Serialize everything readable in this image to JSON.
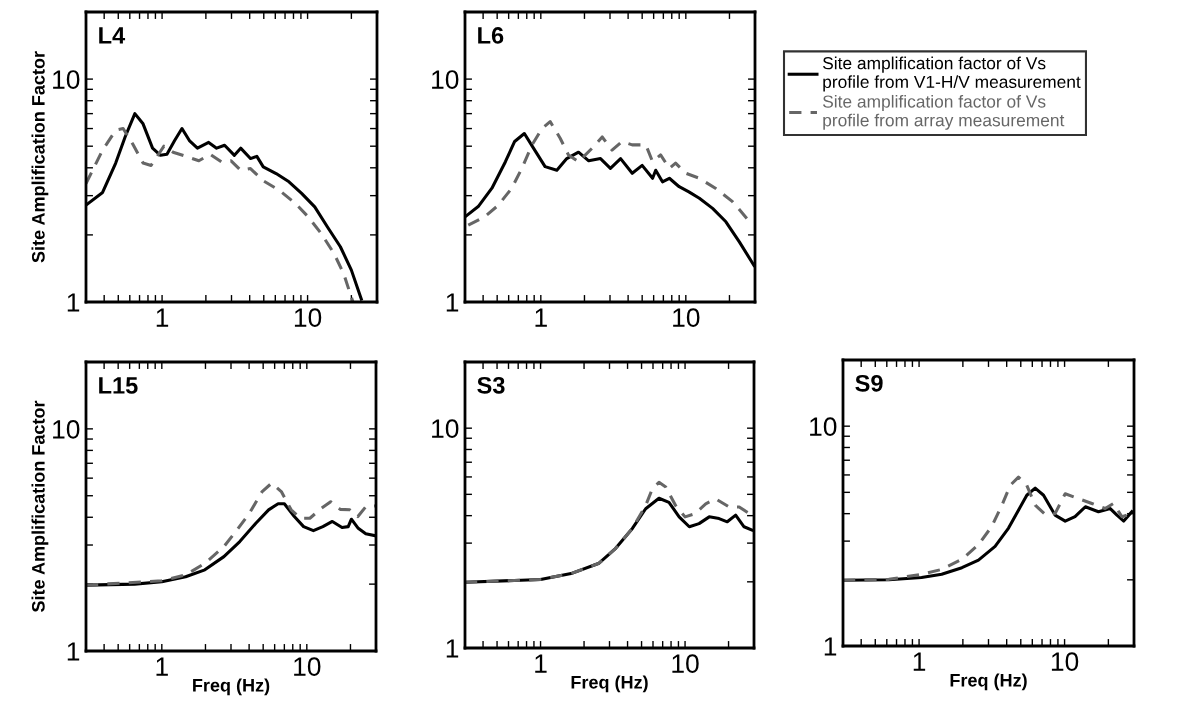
{
  "chart_data": [
    {
      "type": "line",
      "title": "L4",
      "ylabel": "Site Amplification Factor",
      "log": "xy",
      "grid": false,
      "legend": false,
      "xlim": [
        0.3,
        30
      ],
      "ylim": [
        1,
        20
      ],
      "xticks": [
        {
          "value": 0.4,
          "label": null
        },
        {
          "value": 0.5,
          "label": null
        },
        {
          "value": 0.6,
          "label": null
        },
        {
          "value": 0.7,
          "label": null
        },
        {
          "value": 0.8,
          "label": null
        },
        {
          "value": 0.9,
          "label": null
        },
        1,
        {
          "value": 2,
          "label": null
        },
        {
          "value": 3,
          "label": null
        },
        {
          "value": 4,
          "label": null
        },
        {
          "value": 5,
          "label": null
        },
        {
          "value": 6,
          "label": null
        },
        {
          "value": 7,
          "label": null
        },
        {
          "value": 8,
          "label": null
        },
        {
          "value": 9,
          "label": null
        },
        10,
        {
          "value": 20,
          "label": null
        }
      ],
      "yticks": [
        1,
        {
          "value": 2,
          "label": null
        },
        {
          "value": 3,
          "label": null
        },
        {
          "value": 4,
          "label": null
        },
        {
          "value": 5,
          "label": null
        },
        {
          "value": 6,
          "label": null
        },
        {
          "value": 7,
          "label": null
        },
        {
          "value": 8,
          "label": null
        },
        {
          "value": 9,
          "label": null
        },
        10
      ],
      "series": [
        {
          "color": "#000000",
          "line_style": "solid",
          "x": [
            0.3,
            0.39,
            0.48,
            0.557,
            0.65,
            0.74,
            0.86,
            0.975,
            1.08,
            1.22,
            1.37,
            1.54,
            1.75,
            2.09,
            2.37,
            2.69,
            3.14,
            3.47,
            4.05,
            4.48,
            4.96,
            6.08,
            7.45,
            9.1,
            11.2,
            13.7,
            16.8,
            20,
            23.4
          ],
          "values": [
            2.72,
            3.1,
            4.2,
            5.5,
            7.0,
            6.3,
            4.9,
            4.55,
            4.6,
            5.3,
            6.0,
            5.3,
            4.9,
            5.2,
            4.9,
            5.05,
            4.55,
            4.9,
            4.4,
            4.5,
            4.04,
            3.77,
            3.46,
            3.07,
            2.67,
            2.17,
            1.77,
            1.39,
            1.03
          ]
        },
        {
          "color": "#666666",
          "line_style": "dashed",
          "x": [
            0.3,
            0.39,
            0.48,
            0.54,
            0.63,
            0.74,
            0.84,
            1.03,
            1.19,
            1.46,
            1.79,
            2.14,
            2.56,
            2.98,
            3.47,
            4.05,
            4.96,
            6.4,
            8.24,
            10.1,
            12.4,
            15.2,
            17.7,
            20,
            20.5
          ],
          "values": [
            3.4,
            4.8,
            5.9,
            6.0,
            5.1,
            4.2,
            4.1,
            5.0,
            4.7,
            4.5,
            4.3,
            4.6,
            4.25,
            4.3,
            3.9,
            3.97,
            3.5,
            3.17,
            2.77,
            2.41,
            2.03,
            1.65,
            1.34,
            1.05,
            1.0
          ]
        }
      ]
    },
    {
      "type": "line",
      "title": "L6",
      "log": "xy",
      "grid": false,
      "legend": "right",
      "xlim": [
        0.3,
        30
      ],
      "ylim": [
        1,
        20
      ],
      "xticks": [
        {
          "value": 0.4,
          "label": null
        },
        {
          "value": 0.5,
          "label": null
        },
        {
          "value": 0.6,
          "label": null
        },
        {
          "value": 0.7,
          "label": null
        },
        {
          "value": 0.8,
          "label": null
        },
        {
          "value": 0.9,
          "label": null
        },
        1,
        {
          "value": 2,
          "label": null
        },
        {
          "value": 3,
          "label": null
        },
        {
          "value": 4,
          "label": null
        },
        {
          "value": 5,
          "label": null
        },
        {
          "value": 6,
          "label": null
        },
        {
          "value": 7,
          "label": null
        },
        {
          "value": 8,
          "label": null
        },
        {
          "value": 9,
          "label": null
        },
        10,
        {
          "value": 20,
          "label": null
        }
      ],
      "yticks": [
        1,
        {
          "value": 2,
          "label": null
        },
        {
          "value": 3,
          "label": null
        },
        {
          "value": 4,
          "label": null
        },
        {
          "value": 5,
          "label": null
        },
        {
          "value": 6,
          "label": null
        },
        {
          "value": 7,
          "label": null
        },
        {
          "value": 8,
          "label": null
        },
        {
          "value": 9,
          "label": null
        },
        10
      ],
      "series": [
        {
          "name": "Site amplification factor of Vs\nprofile from V1-H/V measurement",
          "color": "#000000",
          "line_style": "solid",
          "x": [
            0.3,
            0.37,
            0.46,
            0.57,
            0.66,
            0.77,
            0.89,
            1.07,
            1.29,
            1.51,
            1.82,
            2.14,
            2.58,
            3.02,
            3.55,
            4.27,
            5.0,
            5.9,
            6.2,
            6.9,
            7.7,
            9.0,
            10.5,
            12.4,
            15.3,
            18.9,
            23.4,
            29.5
          ],
          "values": [
            2.41,
            2.68,
            3.24,
            4.26,
            5.25,
            5.7,
            4.9,
            4.05,
            3.9,
            4.4,
            4.7,
            4.3,
            4.4,
            3.98,
            4.4,
            3.78,
            4.1,
            3.59,
            3.9,
            3.46,
            3.59,
            3.29,
            3.12,
            2.92,
            2.63,
            2.29,
            1.86,
            1.46
          ]
        },
        {
          "name": "Site amplification factor of Vs\nprofile from array measurement",
          "color": "#666666",
          "line_style": "dashed",
          "x": [
            0.316,
            0.41,
            0.51,
            0.63,
            0.74,
            0.87,
            1.02,
            1.16,
            1.36,
            1.55,
            1.82,
            2.26,
            2.65,
            3.1,
            3.63,
            4.27,
            5.3,
            5.9,
            6.7,
            7.7,
            8.5,
            10,
            12.4,
            16.1,
            21,
            28.9
          ],
          "values": [
            2.21,
            2.41,
            2.72,
            3.24,
            3.98,
            5.07,
            6.0,
            6.45,
            5.43,
            4.57,
            4.26,
            4.9,
            5.5,
            4.8,
            5.25,
            5.07,
            5.07,
            4.26,
            4.57,
            3.98,
            4.2,
            3.78,
            3.59,
            3.23,
            2.82,
            2.21
          ]
        }
      ]
    },
    {
      "type": "line",
      "title": "L15",
      "ylabel": "Site Amplification Factor",
      "xlabel": "Freq (Hz)",
      "log": "xy",
      "grid": false,
      "legend": false,
      "xlim": [
        0.3,
        30
      ],
      "ylim": [
        1,
        20
      ],
      "xticks": [
        {
          "value": 0.4,
          "label": null
        },
        {
          "value": 0.5,
          "label": null
        },
        {
          "value": 0.6,
          "label": null
        },
        {
          "value": 0.7,
          "label": null
        },
        {
          "value": 0.8,
          "label": null
        },
        {
          "value": 0.9,
          "label": null
        },
        1,
        {
          "value": 2,
          "label": null
        },
        {
          "value": 3,
          "label": null
        },
        {
          "value": 4,
          "label": null
        },
        {
          "value": 5,
          "label": null
        },
        {
          "value": 6,
          "label": null
        },
        {
          "value": 7,
          "label": null
        },
        {
          "value": 8,
          "label": null
        },
        {
          "value": 9,
          "label": null
        },
        10,
        {
          "value": 20,
          "label": null
        }
      ],
      "yticks": [
        1,
        {
          "value": 2,
          "label": null
        },
        {
          "value": 3,
          "label": null
        },
        {
          "value": 4,
          "label": null
        },
        {
          "value": 5,
          "label": null
        },
        {
          "value": 6,
          "label": null
        },
        {
          "value": 7,
          "label": null
        },
        {
          "value": 8,
          "label": null
        },
        {
          "value": 9,
          "label": null
        },
        10
      ],
      "series": [
        {
          "color": "#000000",
          "line_style": "solid",
          "x": [
            0.3,
            0.65,
            1.0,
            1.46,
            1.98,
            2.68,
            3.45,
            4.45,
            5.45,
            6.34,
            7.0,
            8.2,
            9.5,
            11.1,
            12.9,
            15,
            17.5,
            19.3,
            20.3,
            22.5,
            25.5,
            30
          ],
          "values": [
            1.98,
            2.0,
            2.05,
            2.16,
            2.32,
            2.66,
            3.11,
            3.76,
            4.32,
            4.6,
            4.6,
            4.03,
            3.63,
            3.48,
            3.63,
            3.83,
            3.6,
            3.63,
            3.92,
            3.58,
            3.37,
            3.3
          ]
        },
        {
          "color": "#666666",
          "line_style": "dashed",
          "x": [
            0.3,
            1.0,
            1.46,
            1.98,
            2.68,
            3.3,
            4.02,
            4.92,
            5.73,
            6.67,
            7.8,
            9.0,
            10.5,
            12.6,
            14.6,
            17,
            19.8,
            22.5,
            25.5,
            30
          ],
          "values": [
            1.98,
            2.07,
            2.2,
            2.48,
            2.95,
            3.51,
            4.17,
            5.22,
            5.7,
            5.22,
            4.32,
            3.96,
            3.96,
            4.39,
            4.7,
            4.34,
            4.32,
            4.03,
            4.46,
            4.5
          ]
        }
      ]
    },
    {
      "type": "line",
      "title": "S3",
      "xlabel": "Freq (Hz)",
      "log": "xy",
      "grid": false,
      "legend": false,
      "xlim": [
        0.3,
        30
      ],
      "ylim": [
        1,
        20
      ],
      "xticks": [
        {
          "value": 0.4,
          "label": null
        },
        {
          "value": 0.5,
          "label": null
        },
        {
          "value": 0.6,
          "label": null
        },
        {
          "value": 0.7,
          "label": null
        },
        {
          "value": 0.8,
          "label": null
        },
        {
          "value": 0.9,
          "label": null
        },
        1,
        {
          "value": 2,
          "label": null
        },
        {
          "value": 3,
          "label": null
        },
        {
          "value": 4,
          "label": null
        },
        {
          "value": 5,
          "label": null
        },
        {
          "value": 6,
          "label": null
        },
        {
          "value": 7,
          "label": null
        },
        {
          "value": 8,
          "label": null
        },
        {
          "value": 9,
          "label": null
        },
        10,
        {
          "value": 20,
          "label": null
        }
      ],
      "yticks": [
        1,
        {
          "value": 2,
          "label": null
        },
        {
          "value": 3,
          "label": null
        },
        {
          "value": 4,
          "label": null
        },
        {
          "value": 5,
          "label": null
        },
        {
          "value": 6,
          "label": null
        },
        {
          "value": 7,
          "label": null
        },
        {
          "value": 8,
          "label": null
        },
        {
          "value": 9,
          "label": null
        },
        10
      ],
      "series": [
        {
          "color": "#000000",
          "line_style": "solid",
          "x": [
            0.3,
            1.0,
            1.66,
            2.54,
            3.31,
            4.32,
            5.34,
            6.6,
            7.74,
            9.1,
            10.7,
            12.5,
            14.7,
            17.2,
            19.6,
            22.4,
            25.6,
            29
          ],
          "values": [
            1.99,
            2.05,
            2.19,
            2.43,
            2.84,
            3.5,
            4.3,
            4.8,
            4.6,
            3.95,
            3.56,
            3.68,
            3.95,
            3.88,
            3.75,
            4.02,
            3.56,
            3.44
          ]
        },
        {
          "color": "#666666",
          "line_style": "dashed",
          "x": [
            0.3,
            1.0,
            1.66,
            2.54,
            3.31,
            4.32,
            5.34,
            5.94,
            6.6,
            7.35,
            8.6,
            10,
            11.7,
            13.9,
            16.3,
            20.2,
            23.7,
            29
          ],
          "values": [
            1.99,
            2.05,
            2.19,
            2.43,
            2.84,
            3.5,
            4.45,
            5.3,
            5.67,
            5.4,
            4.45,
            3.95,
            4.08,
            4.53,
            4.77,
            4.38,
            4.38,
            4.02
          ]
        }
      ]
    },
    {
      "type": "line",
      "title": "S9",
      "xlabel": "Freq (Hz)",
      "log": "xy",
      "grid": false,
      "legend": false,
      "xlim": [
        0.3,
        30
      ],
      "ylim": [
        1,
        20
      ],
      "xticks": [
        {
          "value": 0.4,
          "label": null
        },
        {
          "value": 0.5,
          "label": null
        },
        {
          "value": 0.6,
          "label": null
        },
        {
          "value": 0.7,
          "label": null
        },
        {
          "value": 0.8,
          "label": null
        },
        {
          "value": 0.9,
          "label": null
        },
        1,
        {
          "value": 2,
          "label": null
        },
        {
          "value": 3,
          "label": null
        },
        {
          "value": 4,
          "label": null
        },
        {
          "value": 5,
          "label": null
        },
        {
          "value": 6,
          "label": null
        },
        {
          "value": 7,
          "label": null
        },
        {
          "value": 8,
          "label": null
        },
        {
          "value": 9,
          "label": null
        },
        10,
        {
          "value": 20,
          "label": null
        }
      ],
      "yticks": [
        1,
        {
          "value": 2,
          "label": null
        },
        {
          "value": 3,
          "label": null
        },
        {
          "value": 4,
          "label": null
        },
        {
          "value": 5,
          "label": null
        },
        {
          "value": 6,
          "label": null
        },
        {
          "value": 7,
          "label": null
        },
        {
          "value": 8,
          "label": null
        },
        {
          "value": 9,
          "label": null
        },
        10
      ],
      "series": [
        {
          "color": "#000000",
          "line_style": "solid",
          "x": [
            0.3,
            0.62,
            1.04,
            1.43,
            1.97,
            2.56,
            3.33,
            4.12,
            4.82,
            5.5,
            6.28,
            7.17,
            8.6,
            10.1,
            11.8,
            13.9,
            17.1,
            20.6,
            22.9,
            25.5,
            29
          ],
          "values": [
            1.99,
            2.0,
            2.05,
            2.12,
            2.27,
            2.46,
            2.84,
            3.44,
            4.15,
            4.85,
            5.23,
            4.85,
            3.94,
            3.7,
            3.88,
            4.3,
            4.08,
            4.22,
            3.94,
            3.7,
            4.08
          ]
        },
        {
          "color": "#666666",
          "line_style": "dashed",
          "x": [
            0.3,
            0.62,
            1.04,
            1.43,
            1.97,
            2.56,
            3.16,
            3.71,
            4.23,
            4.82,
            5.5,
            6.28,
            7.36,
            8.6,
            10.1,
            12.5,
            15.4,
            19,
            21.7,
            24.8,
            29
          ],
          "values": [
            1.99,
            2.01,
            2.12,
            2.23,
            2.48,
            2.89,
            3.5,
            4.37,
            5.38,
            5.86,
            5.38,
            4.37,
            3.97,
            4.0,
            4.93,
            4.68,
            4.45,
            4.22,
            4.45,
            3.87,
            4.0
          ]
        }
      ]
    }
  ]
}
